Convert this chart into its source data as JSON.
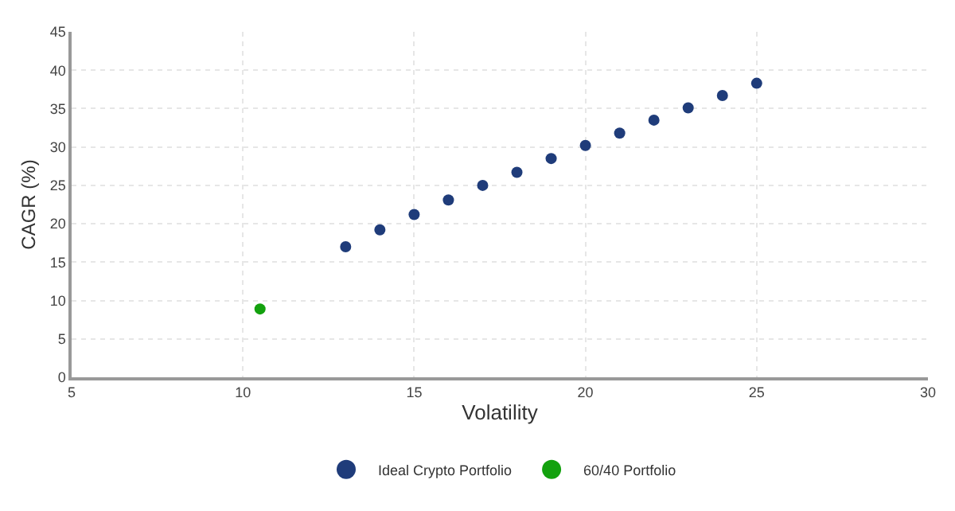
{
  "chart_data": {
    "type": "scatter",
    "xlabel": "Volatility",
    "ylabel": "CAGR (%)",
    "xlim": [
      5,
      30
    ],
    "xticks": [
      5,
      10,
      15,
      20,
      25,
      30
    ],
    "ylim": [
      0,
      45
    ],
    "yticks": [
      0,
      5,
      10,
      15,
      20,
      25,
      30,
      35,
      40,
      45
    ],
    "grid": true,
    "legend": "bottom",
    "marker": "circle",
    "series": [
      {
        "name": "Ideal Crypto Portfolio",
        "color": "#1f3c7a",
        "x": [
          13,
          14,
          15,
          16,
          17,
          18,
          19,
          20,
          21,
          22,
          23,
          24,
          25
        ],
        "values": [
          17.0,
          19.2,
          21.2,
          23.1,
          25.0,
          26.7,
          28.5,
          30.2,
          31.8,
          33.5,
          35.1,
          36.7,
          38.3
        ]
      },
      {
        "name": "60/40 Portfolio",
        "color": "#13a10e",
        "x": [
          10.5
        ],
        "values": [
          8.9
        ]
      }
    ]
  }
}
